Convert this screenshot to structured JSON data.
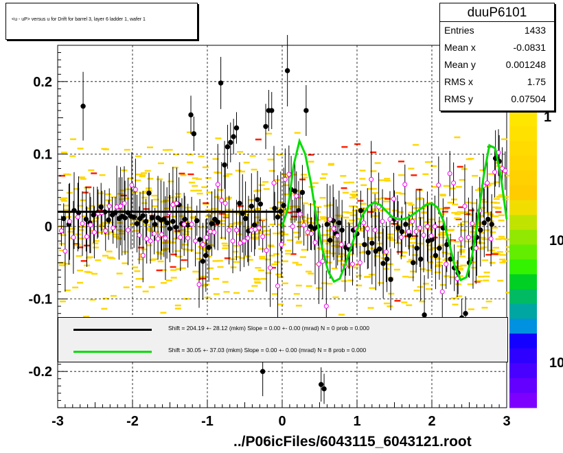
{
  "title": "<u - uP>       versus   u for Drift for barrel 3, layer 6 ladder 1, wafer 1",
  "stats": {
    "name": "duuP6101",
    "rows": [
      {
        "label": "Entries",
        "value": "1433"
      },
      {
        "label": "Mean x",
        "value": "-0.0831"
      },
      {
        "label": "Mean y",
        "value": "0.001248"
      },
      {
        "label": "RMS x",
        "value": "1.75"
      },
      {
        "label": "RMS y",
        "value": "0.07504"
      }
    ]
  },
  "fits": [
    {
      "color": "#000000",
      "text": "Shift =   204.19 +- 28.12 (mkm) Slope =     0.00 +- 0.00 (mrad)  N = 0 prob = 0.000"
    },
    {
      "color": "#00dd00",
      "text": "Shift =    30.05 +- 37.03 (mkm) Slope =     0.00 +- 0.00 (mrad)  N = 8 prob = 0.000"
    }
  ],
  "footer": "../P06icFiles/6043115_6043121.root",
  "colorbar": {
    "labels": [
      "1",
      "10",
      "10"
    ]
  },
  "chart_data": {
    "type": "scatter",
    "xlim": [
      -3,
      3
    ],
    "ylim": [
      -0.25,
      0.25
    ],
    "grid": true,
    "x_ticks": [
      "-3",
      "-2",
      "-1",
      "0",
      "1",
      "2",
      "3"
    ],
    "y_ticks": [
      "-0.2",
      "-0.1",
      "0",
      "0.1",
      "0.2"
    ],
    "y_tick_values": [
      -0.2,
      -0.1,
      0,
      0.1,
      0.2
    ],
    "colors": {
      "histogram": "#ffd700",
      "histogram_high": "#ff2000",
      "black_points": "#000000",
      "open_points": "#ff00ff",
      "fit_black": "#000000",
      "fit_green": "#00dd00"
    },
    "black_series": [
      [
        -2.92,
        0.011
      ],
      [
        -2.85,
        0.003
      ],
      [
        -2.78,
        0.022
      ],
      [
        -2.72,
        0.019
      ],
      [
        -2.66,
        0.166
      ],
      [
        -2.62,
        0.01
      ],
      [
        -2.57,
        0.005
      ],
      [
        -2.52,
        0.016
      ],
      [
        -2.47,
        0.019
      ],
      [
        -2.42,
        0.027
      ],
      [
        -2.37,
        0.02
      ],
      [
        -2.32,
        0.009
      ],
      [
        -2.27,
        0.016
      ],
      [
        -2.23,
        0.019
      ],
      [
        -2.18,
        0.011
      ],
      [
        -2.14,
        0.014
      ],
      [
        -2.1,
        0.012
      ],
      [
        -2.06,
        0.019
      ],
      [
        -2.02,
        0.014
      ],
      [
        -1.98,
        0.013
      ],
      [
        -1.94,
        0.004
      ],
      [
        -1.9,
        0.011
      ],
      [
        -1.86,
        0.015
      ],
      [
        -1.82,
        0.007
      ],
      [
        -1.78,
        0.046
      ],
      [
        -1.74,
        0.012
      ],
      [
        -1.7,
        0.003
      ],
      [
        -1.66,
        0.012
      ],
      [
        -1.62,
        0.009
      ],
      [
        -1.58,
        0.01
      ],
      [
        -1.54,
        0.005
      ],
      [
        -1.5,
        -0.003
      ],
      [
        -1.46,
        0.007
      ],
      [
        -1.42,
        -0.001
      ],
      [
        -1.38,
        0.03
      ],
      [
        -1.34,
        0.004
      ],
      [
        -1.3,
        0.01
      ],
      [
        -1.26,
        0.002
      ],
      [
        -1.22,
        0.154
      ],
      [
        -1.18,
        0.128
      ],
      [
        -1.14,
        0.008
      ],
      [
        -1.1,
        -0.018
      ],
      [
        -1.06,
        -0.048
      ],
      [
        -1.02,
        -0.04
      ],
      [
        -0.98,
        -0.029
      ],
      [
        -0.94,
        0.004
      ],
      [
        -0.9,
        0.01
      ],
      [
        -0.86,
        0.006
      ],
      [
        -0.82,
        0.198
      ],
      [
        -0.77,
        0.085
      ],
      [
        -0.73,
        0.11
      ],
      [
        -0.69,
        0.116
      ],
      [
        -0.65,
        0.124
      ],
      [
        -0.61,
        0.136
      ],
      [
        -0.57,
        0.032
      ],
      [
        -0.53,
        0.018
      ],
      [
        -0.49,
        0.011
      ],
      [
        -0.45,
        -0.006
      ],
      [
        -0.41,
        0.028
      ],
      [
        -0.37,
        0.002
      ],
      [
        -0.33,
        0.037
      ],
      [
        -0.29,
        0.031
      ],
      [
        -0.26,
        -0.2
      ],
      [
        -0.22,
        0.138
      ],
      [
        -0.18,
        0.16
      ],
      [
        -0.14,
        0.16
      ],
      [
        -0.1,
        0.025
      ],
      [
        -0.06,
        0.013
      ],
      [
        -0.02,
        0.021
      ],
      [
        0.02,
        0.029
      ],
      [
        0.07,
        0.215
      ],
      [
        0.12,
        0.051
      ],
      [
        0.17,
        0.049
      ],
      [
        0.22,
        0.022
      ],
      [
        0.27,
        0.047
      ],
      [
        0.32,
        0.16
      ],
      [
        0.38,
        0.0
      ],
      [
        0.43,
        -0.003
      ],
      [
        0.48,
        0.0
      ],
      [
        0.52,
        -0.218
      ],
      [
        0.56,
        -0.224
      ],
      [
        0.6,
        0.003
      ],
      [
        0.64,
        -0.019
      ],
      [
        0.68,
        0.008
      ],
      [
        0.72,
        -0.01
      ],
      [
        0.76,
        0.005
      ],
      [
        0.8,
        -0.005
      ],
      [
        0.85,
        -0.029
      ],
      [
        0.9,
        -0.032
      ],
      [
        0.95,
        -0.005
      ],
      [
        1.0,
        -0.01
      ],
      [
        1.05,
        0.022
      ],
      [
        1.1,
        -0.025
      ],
      [
        1.15,
        -0.036
      ],
      [
        1.2,
        -0.023
      ],
      [
        1.25,
        -0.034
      ],
      [
        1.3,
        -0.031
      ],
      [
        1.35,
        -0.051
      ],
      [
        1.4,
        -0.045
      ],
      [
        1.45,
        -0.073
      ],
      [
        1.5,
        0.01
      ],
      [
        1.55,
        -0.002
      ],
      [
        1.6,
        -0.007
      ],
      [
        1.65,
        0.003
      ],
      [
        1.7,
        -0.012
      ],
      [
        1.75,
        -0.05
      ],
      [
        1.8,
        -0.03
      ],
      [
        1.85,
        -0.045
      ],
      [
        1.9,
        -0.122
      ],
      [
        1.95,
        -0.02
      ],
      [
        2.0,
        -0.018
      ],
      [
        2.05,
        -0.04
      ],
      [
        2.1,
        -0.03
      ],
      [
        2.15,
        -0.002
      ],
      [
        2.2,
        -0.025
      ],
      [
        2.25,
        -0.045
      ],
      [
        2.3,
        -0.057
      ],
      [
        2.35,
        -0.064
      ],
      [
        2.4,
        -0.126
      ],
      [
        2.45,
        -0.12
      ],
      [
        2.5,
        -0.05
      ],
      [
        2.55,
        -0.03
      ],
      [
        2.6,
        -0.015
      ],
      [
        2.65,
        -0.005
      ],
      [
        2.7,
        0.005
      ],
      [
        2.75,
        0.01
      ],
      [
        2.8,
        0.003
      ],
      [
        2.85,
        0.094
      ],
      [
        2.9,
        0.09
      ]
    ],
    "open_series": [
      [
        -2.95,
        -0.006
      ],
      [
        -2.9,
        -0.034
      ],
      [
        -2.84,
        0.007
      ],
      [
        -2.79,
        -0.015
      ],
      [
        -2.73,
        0.013
      ],
      [
        -2.67,
        0.004
      ],
      [
        -2.61,
        -0.014
      ],
      [
        -2.56,
        0.002
      ],
      [
        -2.51,
        -0.008
      ],
      [
        -2.46,
        0.018
      ],
      [
        -2.41,
        0.019
      ],
      [
        -2.36,
        -0.006
      ],
      [
        -2.31,
        0.028
      ],
      [
        -2.26,
        -0.002
      ],
      [
        -2.21,
        0.027
      ],
      [
        -2.16,
        0.028
      ],
      [
        -2.11,
        0.032
      ],
      [
        -2.06,
        -0.005
      ],
      [
        -2.01,
        0.057
      ],
      [
        -1.96,
        0.051
      ],
      [
        -1.91,
        -0.012
      ],
      [
        -1.86,
        -0.04
      ],
      [
        -1.81,
        -0.017
      ],
      [
        -1.76,
        -0.02
      ],
      [
        -1.71,
        -0.01
      ],
      [
        -1.66,
        -0.017
      ],
      [
        -1.61,
        -0.011
      ],
      [
        -1.56,
        -0.016
      ],
      [
        -1.51,
        0.019
      ],
      [
        -1.46,
        0.03
      ],
      [
        -1.41,
        0.032
      ],
      [
        -1.36,
        -0.015
      ],
      [
        -1.31,
        0.003
      ],
      [
        -1.26,
        -0.016
      ],
      [
        -1.21,
        0.003
      ],
      [
        -1.16,
        -0.02
      ],
      [
        -1.11,
        -0.08
      ],
      [
        -1.06,
        -0.025
      ],
      [
        -1.01,
        -0.015
      ],
      [
        -0.96,
        -0.007
      ],
      [
        -0.91,
        -0.008
      ],
      [
        -0.86,
        0.058
      ],
      [
        -0.81,
        0.036
      ],
      [
        -0.76,
        0.032
      ],
      [
        -0.71,
        -0.005
      ],
      [
        -0.66,
        -0.02
      ],
      [
        -0.61,
        -0.005
      ],
      [
        -0.56,
        -0.023
      ],
      [
        -0.51,
        -0.02
      ],
      [
        -0.46,
        -0.016
      ],
      [
        -0.41,
        -0.005
      ],
      [
        -0.36,
        -0.004
      ],
      [
        -0.31,
        -0.002
      ],
      [
        -0.26,
        -0.014
      ],
      [
        -0.21,
        -0.033
      ],
      [
        -0.16,
        -0.057
      ],
      [
        -0.11,
        0.06
      ],
      [
        -0.06,
        -0.082
      ],
      [
        -0.01,
        -0.025
      ],
      [
        0.04,
        0.065
      ],
      [
        0.09,
        0.072
      ],
      [
        0.14,
        0.0
      ],
      [
        0.19,
        0.042
      ],
      [
        0.24,
        0.017
      ],
      [
        0.29,
        0.002
      ],
      [
        0.34,
        -0.008
      ],
      [
        0.39,
        -0.01
      ],
      [
        0.44,
        -0.022
      ],
      [
        0.49,
        -0.052
      ],
      [
        0.54,
        -0.048
      ],
      [
        0.59,
        -0.11
      ],
      [
        0.64,
        0.01
      ],
      [
        0.69,
        -0.003
      ],
      [
        0.74,
        -0.013
      ],
      [
        0.79,
        -0.025
      ],
      [
        0.84,
        -0.055
      ],
      [
        0.89,
        -0.026
      ],
      [
        0.94,
        -0.052
      ],
      [
        0.99,
        -0.003
      ],
      [
        1.04,
        -0.05
      ],
      [
        1.09,
        0.005
      ],
      [
        1.14,
        -0.003
      ],
      [
        1.19,
        0.065
      ],
      [
        1.24,
        -0.005
      ],
      [
        1.29,
        0.027
      ],
      [
        1.34,
        0.007
      ],
      [
        1.39,
        -0.035
      ],
      [
        1.44,
        0.01
      ],
      [
        1.49,
        0.038
      ],
      [
        1.54,
        0.01
      ],
      [
        1.59,
        -0.015
      ],
      [
        1.64,
        0.058
      ],
      [
        1.69,
        -0.007
      ],
      [
        1.74,
        0.007
      ],
      [
        1.79,
        -0.007
      ],
      [
        1.84,
        -0.002
      ],
      [
        1.89,
        -0.012
      ],
      [
        1.94,
        0.0
      ],
      [
        1.99,
        -0.013
      ],
      [
        2.04,
        0.0
      ],
      [
        2.09,
        0.057
      ],
      [
        2.14,
        -0.09
      ],
      [
        2.19,
        -0.052
      ],
      [
        2.24,
        0.073
      ],
      [
        2.29,
        0.06
      ],
      [
        2.34,
        -0.072
      ],
      [
        2.39,
        -0.017
      ],
      [
        2.44,
        0.028
      ],
      [
        2.49,
        -0.015
      ],
      [
        2.54,
        0.004
      ],
      [
        2.59,
        -0.03
      ],
      [
        2.64,
        0.022
      ],
      [
        2.69,
        0.056
      ],
      [
        2.74,
        0.06
      ],
      [
        2.79,
        -0.017
      ],
      [
        2.84,
        0.075
      ],
      [
        2.89,
        0.102
      ],
      [
        2.94,
        0.08
      ],
      [
        2.98,
        0.077
      ]
    ],
    "fit_black": {
      "x_range": [
        -3,
        0.0
      ],
      "y": 0.0204
    },
    "fit_green": {
      "x_range": [
        0.0,
        3.0
      ],
      "y": [
        0.0,
        0.025,
        0.085,
        0.118,
        0.1,
        0.06,
        0.01,
        -0.032,
        -0.062,
        -0.076,
        -0.072,
        -0.052,
        -0.028,
        -0.004,
        0.016,
        0.028,
        0.033,
        0.03,
        0.022,
        0.014,
        0.01,
        0.01,
        0.013,
        0.018,
        0.024,
        0.03,
        0.032,
        0.026,
        0.008,
        -0.023,
        -0.055,
        -0.074,
        -0.07,
        -0.04,
        0.01,
        0.07,
        0.112,
        0.108,
        0.068,
        0.01
      ]
    }
  }
}
